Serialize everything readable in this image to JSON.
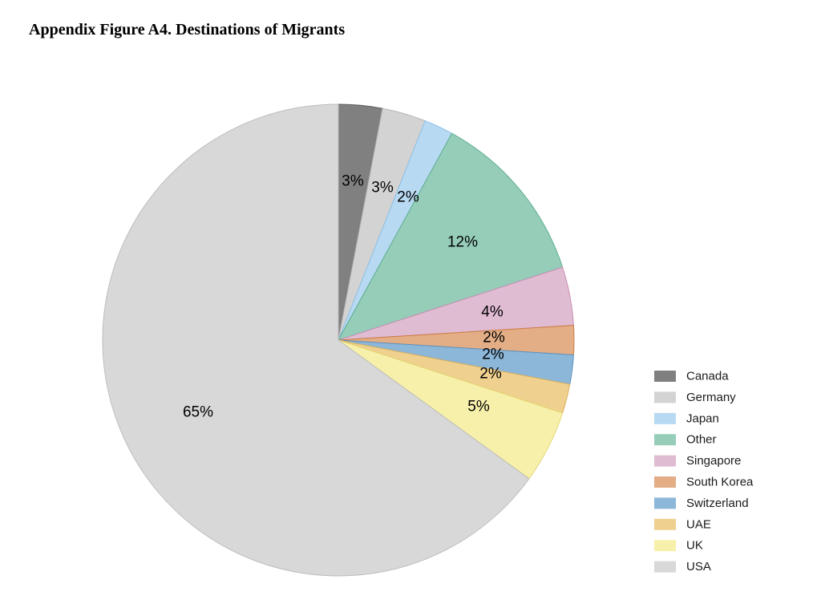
{
  "figure": {
    "title": "Appendix Figure A4. Destinations of Migrants"
  },
  "chart_data": {
    "type": "pie",
    "title": "Appendix Figure A4. Destinations of Migrants",
    "start_angle_deg": 0,
    "direction": "clockwise",
    "legend_position": "right-bottom",
    "slices": [
      {
        "label": "Canada",
        "value": 3,
        "display": "3%",
        "color": "#808080",
        "stroke": "#5c5c5c"
      },
      {
        "label": "Germany",
        "value": 3,
        "display": "3%",
        "color": "#d3d3d3",
        "stroke": "#b5b5b5"
      },
      {
        "label": "Japan",
        "value": 2,
        "display": "2%",
        "color": "#b7d9f1",
        "stroke": "#8fc2e6"
      },
      {
        "label": "Other",
        "value": 12,
        "display": "12%",
        "color": "#95cdb9",
        "stroke": "#5cae8f"
      },
      {
        "label": "Singapore",
        "value": 4,
        "display": "4%",
        "color": "#e0bcd3",
        "stroke": "#c98fb2"
      },
      {
        "label": "South Korea",
        "value": 2,
        "display": "2%",
        "color": "#e3ae86",
        "stroke": "#cc7c43"
      },
      {
        "label": "Switzerland",
        "value": 2,
        "display": "2%",
        "color": "#8db7d9",
        "stroke": "#5c93c2"
      },
      {
        "label": "UAE",
        "value": 2,
        "display": "2%",
        "color": "#efd08e",
        "stroke": "#dbb05c"
      },
      {
        "label": "UK",
        "value": 5,
        "display": "5%",
        "color": "#f7f0ab",
        "stroke": "#e3d873"
      },
      {
        "label": "USA",
        "value": 65,
        "display": "65%",
        "color": "#d8d8d8",
        "stroke": "#bdbdbd"
      }
    ]
  }
}
